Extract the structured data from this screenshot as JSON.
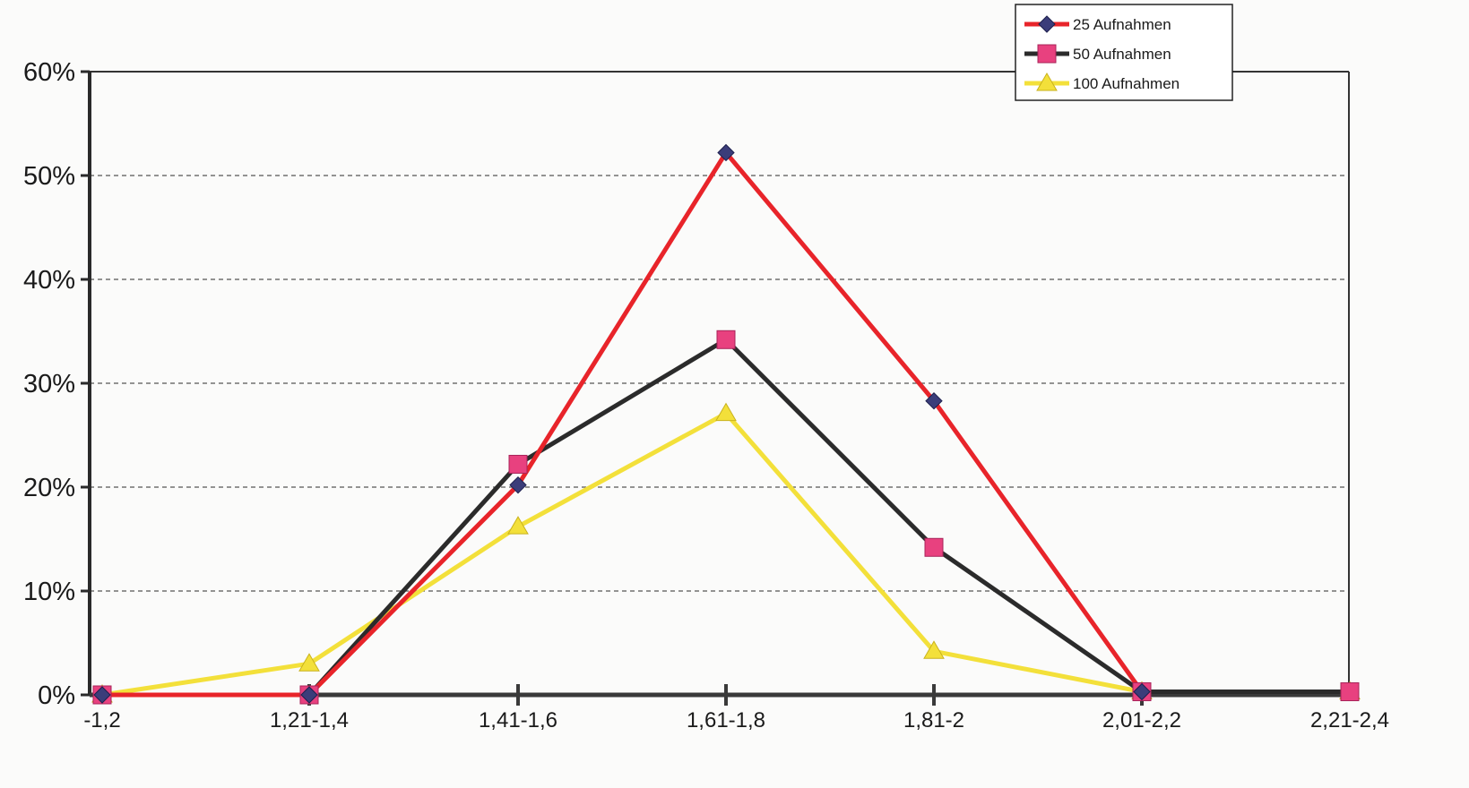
{
  "chart_data": {
    "type": "line",
    "title": "",
    "xlabel": "",
    "ylabel": "",
    "categories": [
      "-1,2",
      "1,21-1,4",
      "1,41-1,6",
      "1,61-1,8",
      "1,81-2",
      "2,01-2,2",
      "2,21-2,4"
    ],
    "y_ticks": [
      "0%",
      "10%",
      "20%",
      "30%",
      "40%",
      "50%",
      "60%"
    ],
    "ylim": [
      0,
      0.6
    ],
    "y_format": "percent",
    "grid": "horizontal dashed",
    "legend_position": "top-right",
    "series": [
      {
        "name": "25 Aufnahmen",
        "color": "#e8242a",
        "marker": "diamond",
        "marker_color": "#3b3d7a",
        "values": [
          0,
          0,
          0.202,
          0.522,
          0.283,
          0.003,
          null
        ]
      },
      {
        "name": "50 Aufnahmen",
        "color": "#2b2b2b",
        "marker": "square",
        "marker_color": "#e8417f",
        "values": [
          0,
          0,
          0.222,
          0.342,
          0.142,
          0.003,
          0.003
        ]
      },
      {
        "name": "100 Aufnahmen",
        "color": "#f3e03a",
        "marker": "triangle",
        "marker_color": "#f3e03a",
        "values": [
          0,
          0.03,
          0.162,
          0.271,
          0.042,
          0.003,
          0.003
        ]
      }
    ]
  }
}
